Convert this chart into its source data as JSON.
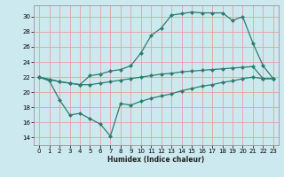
{
  "xlabel": "Humidex (Indice chaleur)",
  "bg_color": "#cde9f0",
  "grid_color": "#e8a0a0",
  "line_color": "#2d7c6e",
  "xlim": [
    -0.5,
    23.5
  ],
  "ylim": [
    13.0,
    31.5
  ],
  "yticks": [
    14,
    16,
    18,
    20,
    22,
    24,
    26,
    28,
    30
  ],
  "xticks": [
    0,
    1,
    2,
    3,
    4,
    5,
    6,
    7,
    8,
    9,
    10,
    11,
    12,
    13,
    14,
    15,
    16,
    17,
    18,
    19,
    20,
    21,
    22,
    23
  ],
  "line_flat_x": [
    0,
    1,
    2,
    3,
    4,
    5,
    6,
    7,
    8,
    9,
    10,
    11,
    12,
    13,
    14,
    15,
    16,
    17,
    18,
    19,
    20,
    21,
    22,
    23
  ],
  "line_flat_y": [
    22.0,
    21.7,
    21.4,
    21.2,
    21.0,
    21.0,
    21.2,
    21.4,
    21.6,
    21.8,
    22.0,
    22.2,
    22.4,
    22.5,
    22.7,
    22.8,
    22.9,
    23.0,
    23.1,
    23.2,
    23.3,
    23.4,
    21.8,
    21.8
  ],
  "line_low_x": [
    0,
    1,
    2,
    3,
    4,
    5,
    6,
    7,
    8,
    9,
    10,
    11,
    12,
    13,
    14,
    15,
    16,
    17,
    18,
    19,
    20,
    21,
    22,
    23
  ],
  "line_low_y": [
    22.0,
    21.5,
    19.0,
    17.0,
    17.2,
    16.5,
    15.8,
    14.2,
    18.5,
    18.3,
    18.8,
    19.2,
    19.5,
    19.8,
    20.2,
    20.5,
    20.8,
    21.0,
    21.3,
    21.5,
    21.8,
    22.0,
    21.8,
    21.8
  ],
  "line_high_x": [
    0,
    1,
    2,
    3,
    4,
    5,
    6,
    7,
    8,
    9,
    10,
    11,
    12,
    13,
    14,
    15,
    16,
    17,
    18,
    19,
    20,
    21,
    22,
    23
  ],
  "line_high_y": [
    22.0,
    21.7,
    21.4,
    21.2,
    21.0,
    22.2,
    22.4,
    22.8,
    23.0,
    23.5,
    25.2,
    27.5,
    28.5,
    30.2,
    30.4,
    30.6,
    30.5,
    30.5,
    30.5,
    29.5,
    30.0,
    26.5,
    23.5,
    21.8
  ],
  "marker_size": 2.5
}
